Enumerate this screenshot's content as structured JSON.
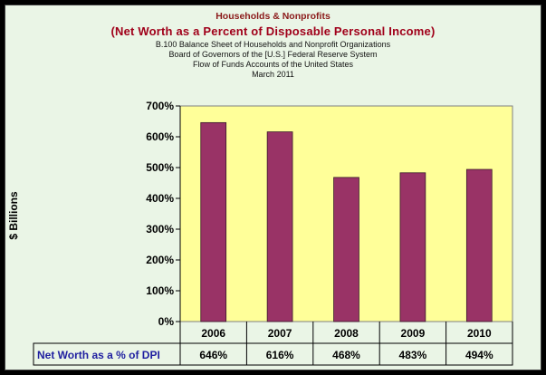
{
  "titles": {
    "line1": "Households & Nonprofits",
    "line2": "(Net Worth as a Percent of Disposable Personal Income)",
    "line3": "B.100 Balance Sheet of Households and Nonprofit Organizations",
    "line4": "Board of Governors of the [U.S.] Federal Reserve System",
    "line5": "Flow of Funds Accounts of the United States",
    "line6": "March 2011"
  },
  "colors": {
    "plot_background": "#ffff99",
    "bar": "#993366",
    "row_label": "#1f1fa0"
  },
  "chart_data": {
    "type": "bar",
    "categories": [
      "2006",
      "2007",
      "2008",
      "2009",
      "2010"
    ],
    "series": [
      {
        "name": "Net Worth as a % of DPI",
        "values": [
          646,
          616,
          468,
          483,
          494
        ]
      }
    ],
    "value_labels": [
      "646%",
      "616%",
      "468%",
      "483%",
      "494%"
    ],
    "ylabel": "$ Billions",
    "ylim": [
      0,
      700
    ],
    "yticks": [
      "0%",
      "100%",
      "200%",
      "300%",
      "400%",
      "500%",
      "600%",
      "700%"
    ],
    "grid": false,
    "legend": "data table below chart"
  }
}
